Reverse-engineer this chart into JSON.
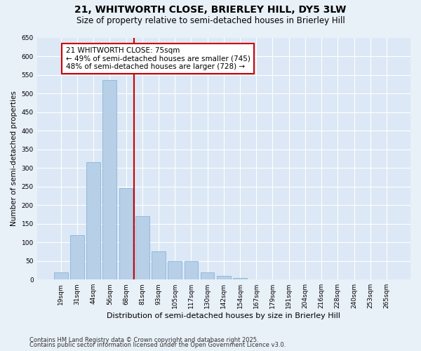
{
  "title": "21, WHITWORTH CLOSE, BRIERLEY HILL, DY5 3LW",
  "subtitle": "Size of property relative to semi-detached houses in Brierley Hill",
  "xlabel": "Distribution of semi-detached houses by size in Brierley Hill",
  "ylabel": "Number of semi-detached properties",
  "categories": [
    "19sqm",
    "31sqm",
    "44sqm",
    "56sqm",
    "68sqm",
    "81sqm",
    "93sqm",
    "105sqm",
    "117sqm",
    "130sqm",
    "142sqm",
    "154sqm",
    "167sqm",
    "179sqm",
    "191sqm",
    "204sqm",
    "216sqm",
    "228sqm",
    "240sqm",
    "253sqm",
    "265sqm"
  ],
  "values": [
    20,
    120,
    315,
    535,
    245,
    170,
    75,
    50,
    50,
    20,
    10,
    5,
    0,
    0,
    0,
    0,
    0,
    0,
    0,
    0,
    0
  ],
  "bar_color": "#b8cfe8",
  "bar_edge_color": "#7aaed4",
  "vline_color": "#cc0000",
  "annotation_title": "21 WHITWORTH CLOSE: 75sqm",
  "annotation_line1": "← 49% of semi-detached houses are smaller (745)",
  "annotation_line2": "48% of semi-detached houses are larger (728) →",
  "annotation_box_color": "#ffffff",
  "annotation_box_edge": "#cc0000",
  "ylim": [
    0,
    650
  ],
  "yticks": [
    0,
    50,
    100,
    150,
    200,
    250,
    300,
    350,
    400,
    450,
    500,
    550,
    600,
    650
  ],
  "footnote1": "Contains HM Land Registry data © Crown copyright and database right 2025.",
  "footnote2": "Contains public sector information licensed under the Open Government Licence v3.0.",
  "bg_color": "#dce8f5",
  "grid_color": "#ffffff",
  "fig_bg_color": "#e8f0f8",
  "title_fontsize": 10,
  "subtitle_fontsize": 8.5,
  "xlabel_fontsize": 8,
  "ylabel_fontsize": 7.5,
  "tick_fontsize": 6.5,
  "annotation_fontsize": 7.5,
  "footnote_fontsize": 6
}
